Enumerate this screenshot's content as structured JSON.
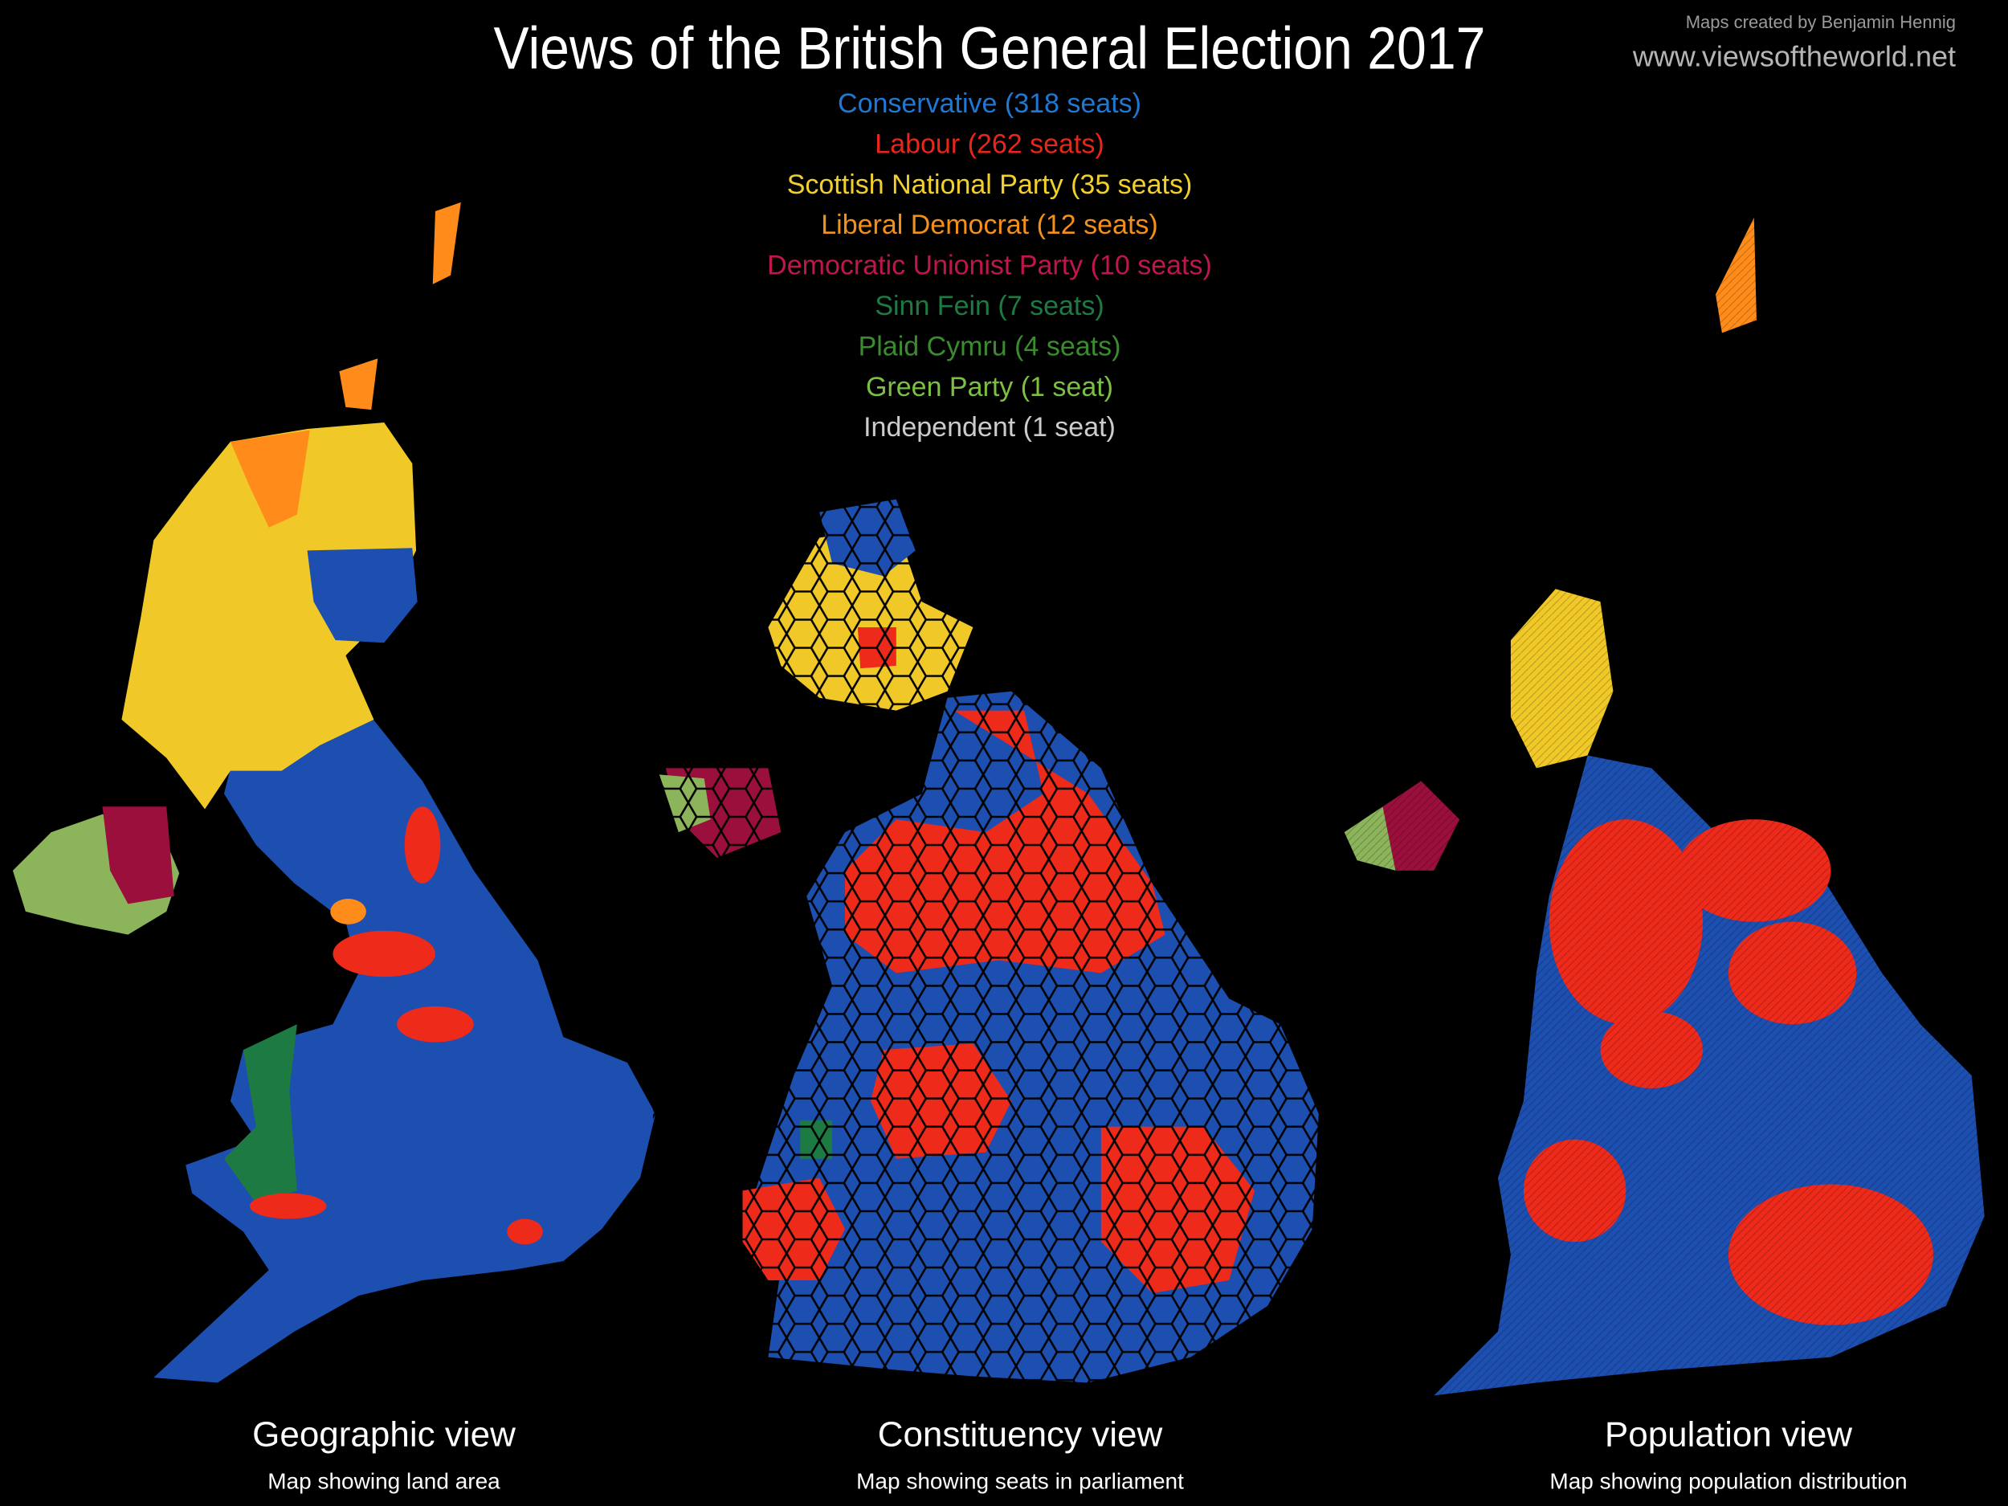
{
  "header": {
    "title": "Views of the British General Election 2017",
    "credits": [
      "Maps created by Benjamin Hennig",
      "www.viewsoftheworld.net"
    ]
  },
  "legend": [
    {
      "label": "Conservative (318 seats)",
      "color": "#1f78d1"
    },
    {
      "label": "Labour (262 seats)",
      "color": "#e8261b"
    },
    {
      "label": "Scottish National Party (35 seats)",
      "color": "#f2d02c"
    },
    {
      "label": "Liberal Democrat (12 seats)",
      "color": "#f39019"
    },
    {
      "label": "Democratic Unionist Party (10 seats)",
      "color": "#c0174b"
    },
    {
      "label": "Sinn Fein (7 seats)",
      "color": "#1e7a43"
    },
    {
      "label": "Plaid Cymru (4 seats)",
      "color": "#3a8c2f"
    },
    {
      "label": "Green Party (1 seat)",
      "color": "#7bc043"
    },
    {
      "label": "Independent (1 seat)",
      "color": "#cccccc"
    }
  ],
  "panels": [
    {
      "title": "Geographic view",
      "subtitle": "Map showing land area"
    },
    {
      "title": "Constituency view",
      "subtitle": "Map showing seats in parliament"
    },
    {
      "title": "Population view",
      "subtitle": "Map showing population distribution"
    }
  ]
}
